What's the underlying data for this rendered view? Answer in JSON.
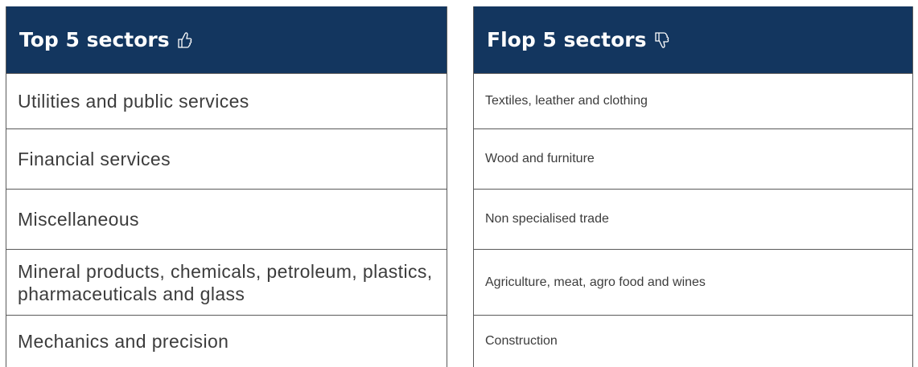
{
  "tables": [
    {
      "title": "Top 5 sectors",
      "rows": [
        "Utilities and public services",
        "Financial services",
        "Miscellaneous",
        "Mineral products, chemicals, petroleum, plastics, pharmaceuticals and glass",
        "Mechanics and precision"
      ]
    },
    {
      "title": "Flop 5 sectors",
      "rows": [
        "Textiles, leather and clothing",
        "Wood and furniture",
        "Non specialised trade",
        "Agriculture, meat, agro food and wines",
        "Construction"
      ]
    }
  ]
}
